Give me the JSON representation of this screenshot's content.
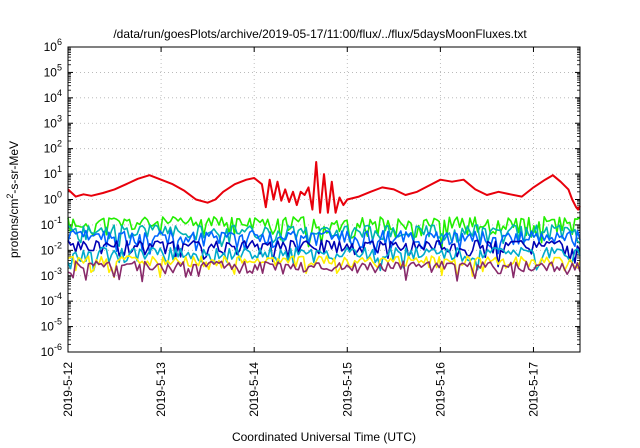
{
  "chart_data": {
    "type": "line",
    "title": "/data/run/goesPlots/archive/2019-05-17/11:00/flux/../flux/5daysMoonFluxes.txt",
    "xlabel": "Coordinated Universal Time (UTC)",
    "ylabel_parts": {
      "pre": "protons/cm",
      "sup": "2",
      "post": "-s-sr-MeV"
    },
    "xscale": "time",
    "xlim": [
      "2019-05-12",
      "2019-05-17 12:00"
    ],
    "x_ticks": [
      "2019-5-12",
      "2019-5-13",
      "2019-5-14",
      "2019-5-15",
      "2019-5-16",
      "2019-5-17"
    ],
    "yscale": "log",
    "ylim": [
      1e-06,
      1000000.0
    ],
    "y_ticks": [
      {
        "base": "10",
        "exp": "-6"
      },
      {
        "base": "10",
        "exp": "-5"
      },
      {
        "base": "10",
        "exp": "-4"
      },
      {
        "base": "10",
        "exp": "-3"
      },
      {
        "base": "10",
        "exp": "-2"
      },
      {
        "base": "10",
        "exp": "-1"
      },
      {
        "base": "10",
        "exp": "0"
      },
      {
        "base": "10",
        "exp": "1"
      },
      {
        "base": "10",
        "exp": "2"
      },
      {
        "base": "10",
        "exp": "3"
      },
      {
        "base": "10",
        "exp": "4"
      },
      {
        "base": "10",
        "exp": "5"
      },
      {
        "base": "10",
        "exp": "6"
      }
    ],
    "grid": true,
    "legend": "none",
    "series": [
      {
        "color": "#e8000b",
        "points": [
          [
            "2019-05-12 00:00",
            2.5
          ],
          [
            "2019-05-12 02:00",
            1.3
          ],
          [
            "2019-05-12 04:00",
            1.6
          ],
          [
            "2019-05-12 06:00",
            1.4
          ],
          [
            "2019-05-12 09:00",
            1.8
          ],
          [
            "2019-05-12 12:00",
            2.5
          ],
          [
            "2019-05-12 15:00",
            4.0
          ],
          [
            "2019-05-12 18:00",
            6.5
          ],
          [
            "2019-05-12 21:00",
            9.0
          ],
          [
            "2019-05-13 00:00",
            6.0
          ],
          [
            "2019-05-13 03:00",
            4.0
          ],
          [
            "2019-05-13 06:00",
            2.2
          ],
          [
            "2019-05-13 09:00",
            1.0
          ],
          [
            "2019-05-13 12:00",
            0.75
          ],
          [
            "2019-05-13 14:00",
            1.0
          ],
          [
            "2019-05-13 16:00",
            2.0
          ],
          [
            "2019-05-13 19:00",
            4.0
          ],
          [
            "2019-05-13 22:00",
            6.0
          ],
          [
            "2019-05-14 00:00",
            7.0
          ],
          [
            "2019-05-14 02:00",
            4.0
          ],
          [
            "2019-05-14 03:00",
            0.5
          ],
          [
            "2019-05-14 04:00",
            6.0
          ],
          [
            "2019-05-14 05:00",
            1.0
          ],
          [
            "2019-05-14 06:00",
            5.0
          ],
          [
            "2019-05-14 07:00",
            0.9
          ],
          [
            "2019-05-14 08:00",
            2.5
          ],
          [
            "2019-05-14 09:00",
            0.8
          ],
          [
            "2019-05-14 10:00",
            2.0
          ],
          [
            "2019-05-14 11:00",
            0.6
          ],
          [
            "2019-05-14 12:00",
            2.0
          ],
          [
            "2019-05-14 13:00",
            1.5
          ],
          [
            "2019-05-14 14:00",
            3.0
          ],
          [
            "2019-05-14 15:00",
            0.4
          ],
          [
            "2019-05-14 16:00",
            30.0
          ],
          [
            "2019-05-14 17:00",
            0.3
          ],
          [
            "2019-05-14 18:00",
            10.0
          ],
          [
            "2019-05-14 19:00",
            0.3
          ],
          [
            "2019-05-14 20:00",
            5.0
          ],
          [
            "2019-05-14 21:00",
            0.3
          ],
          [
            "2019-05-14 22:00",
            1.2
          ],
          [
            "2019-05-14 23:00",
            0.6
          ],
          [
            "2019-05-15 00:00",
            1.0
          ],
          [
            "2019-05-15 03:00",
            1.3
          ],
          [
            "2019-05-15 06:00",
            2.0
          ],
          [
            "2019-05-15 09:00",
            3.0
          ],
          [
            "2019-05-15 12:00",
            2.5
          ],
          [
            "2019-05-15 15:00",
            1.5
          ],
          [
            "2019-05-15 18:00",
            2.0
          ],
          [
            "2019-05-15 21:00",
            3.5
          ],
          [
            "2019-05-16 00:00",
            6.0
          ],
          [
            "2019-05-16 03:00",
            5.0
          ],
          [
            "2019-05-16 06:00",
            6.0
          ],
          [
            "2019-05-16 09:00",
            2.5
          ],
          [
            "2019-05-16 12:00",
            1.5
          ],
          [
            "2019-05-16 15:00",
            2.0
          ],
          [
            "2019-05-16 18:00",
            1.6
          ],
          [
            "2019-05-16 21:00",
            1.3
          ],
          [
            "2019-05-17 00:00",
            3.0
          ],
          [
            "2019-05-17 03:00",
            6.0
          ],
          [
            "2019-05-17 05:00",
            9.0
          ],
          [
            "2019-05-17 07:00",
            5.0
          ],
          [
            "2019-05-17 09:00",
            2.5
          ],
          [
            "2019-05-17 10:00",
            1.0
          ],
          [
            "2019-05-17 11:00",
            0.5
          ],
          [
            "2019-05-17 11:30",
            0.4
          ],
          [
            "2019-05-17 12:00",
            0.55
          ]
        ]
      },
      {
        "color": "#22ee00",
        "level": 0.12,
        "amp": 0.75,
        "seed": 11
      },
      {
        "color": "#00b2b2",
        "level": 0.06,
        "amp": 0.7,
        "seed": 23
      },
      {
        "color": "#0066ff",
        "level": 0.035,
        "amp": 0.75,
        "seed": 37
      },
      {
        "color": "#0000b4",
        "level": 0.015,
        "amp": 0.7,
        "seed": 41
      },
      {
        "color": "#00aacc",
        "level": 0.008,
        "amp": 0.6,
        "seed": 53
      },
      {
        "color": "#ffee00",
        "level": 0.004,
        "amp": 0.5,
        "seed": 61
      },
      {
        "color": "#882a6a",
        "level": 0.0025,
        "amp": 0.5,
        "seed": 71
      }
    ]
  }
}
